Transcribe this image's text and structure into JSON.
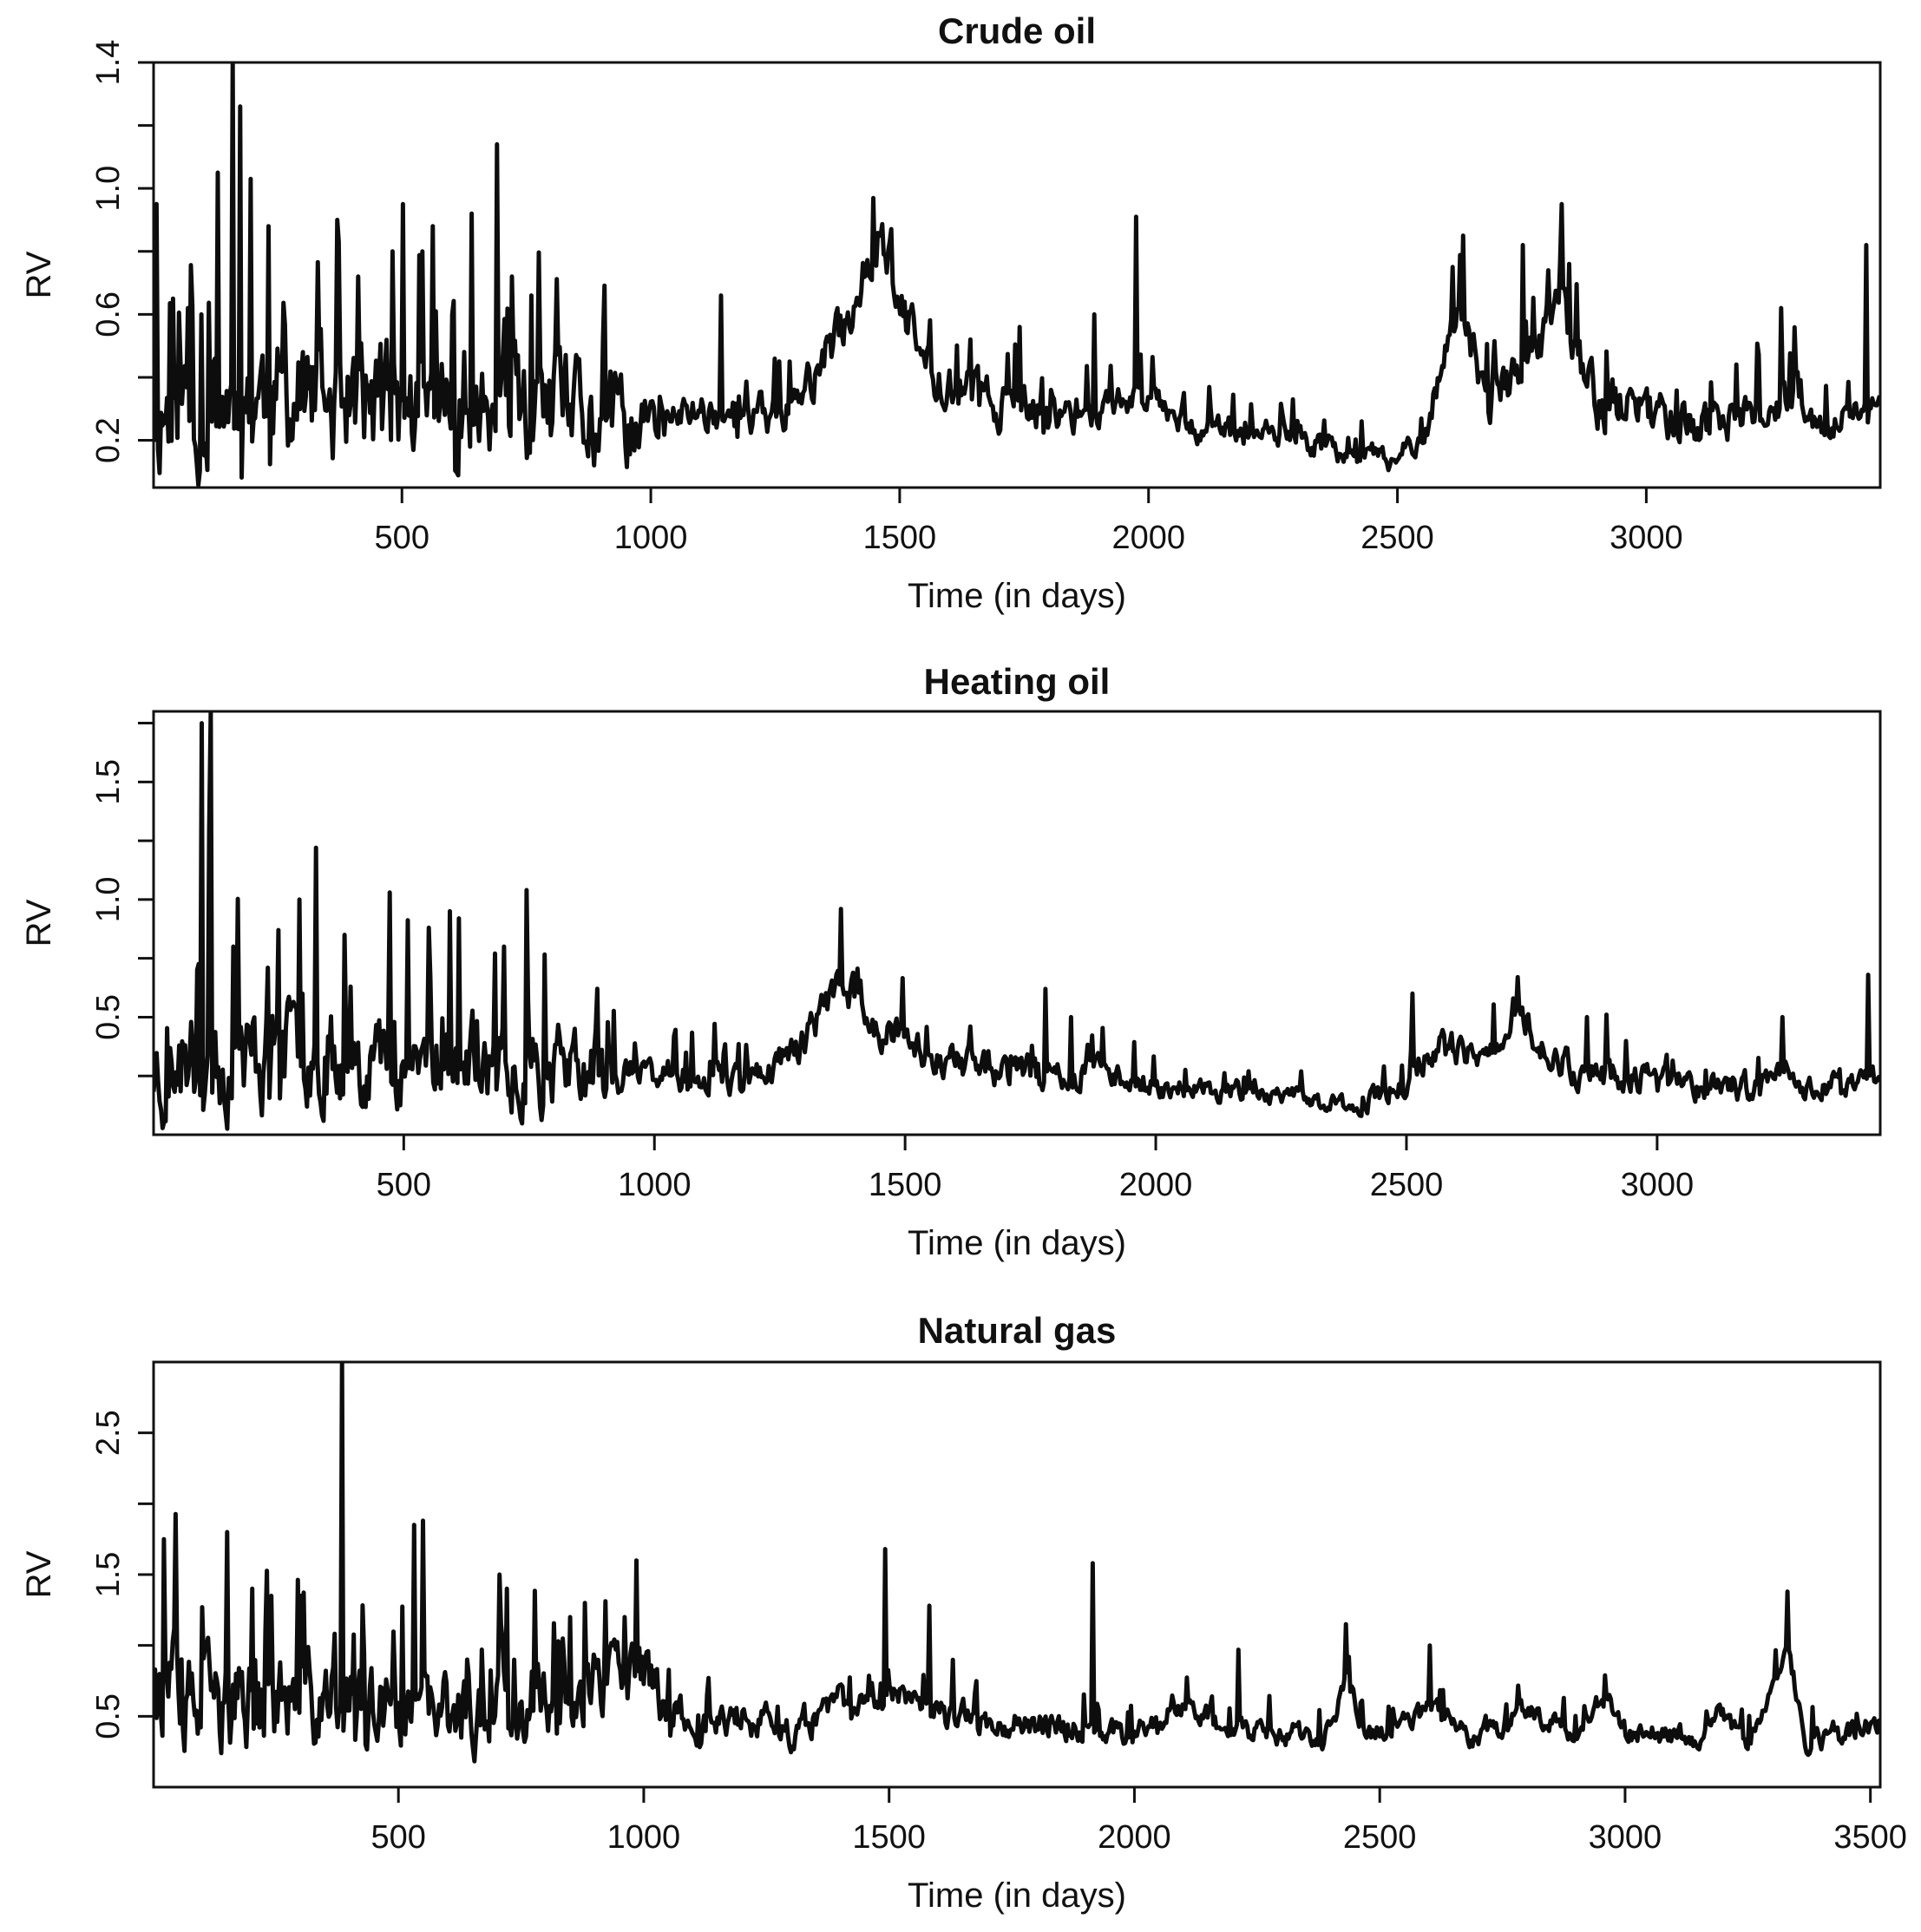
{
  "colors": {
    "line": "#0d0d0d",
    "axis": "#111111",
    "background": "#ffffff"
  },
  "chart_data": [
    {
      "type": "line",
      "title": "Crude oil",
      "xlabel": "Time (in days)",
      "ylabel": "RV",
      "xlim": [
        1,
        3470
      ],
      "ylim": [
        0.05,
        1.4
      ],
      "xticks": [
        500,
        1000,
        1500,
        2000,
        2500,
        3000
      ],
      "yticks": [
        0.2,
        0.6,
        1.0,
        1.4
      ],
      "ytick_labels": [
        "0.2",
        "0.6",
        "1.0",
        "1.4"
      ],
      "base_profile": [
        [
          1,
          0.3
        ],
        [
          200,
          0.34
        ],
        [
          500,
          0.3
        ],
        [
          800,
          0.27
        ],
        [
          1000,
          0.24
        ],
        [
          1100,
          0.3
        ],
        [
          1200,
          0.26
        ],
        [
          1300,
          0.32
        ],
        [
          1400,
          0.6
        ],
        [
          1460,
          0.88
        ],
        [
          1500,
          0.62
        ],
        [
          1560,
          0.42
        ],
        [
          1700,
          0.32
        ],
        [
          1800,
          0.27
        ],
        [
          1950,
          0.33
        ],
        [
          2000,
          0.36
        ],
        [
          2100,
          0.24
        ],
        [
          2300,
          0.2
        ],
        [
          2500,
          0.13
        ],
        [
          2560,
          0.26
        ],
        [
          2620,
          0.62
        ],
        [
          2680,
          0.33
        ],
        [
          2760,
          0.42
        ],
        [
          2830,
          0.62
        ],
        [
          2900,
          0.32
        ],
        [
          3000,
          0.3
        ],
        [
          3150,
          0.24
        ],
        [
          3300,
          0.34
        ],
        [
          3350,
          0.24
        ],
        [
          3470,
          0.3
        ]
      ],
      "noise_profile": [
        [
          1,
          0.17
        ],
        [
          900,
          0.14
        ],
        [
          1050,
          0.05
        ],
        [
          1400,
          0.06
        ],
        [
          1500,
          0.07
        ],
        [
          2000,
          0.04
        ],
        [
          2500,
          0.03
        ],
        [
          2650,
          0.06
        ],
        [
          2850,
          0.07
        ],
        [
          3470,
          0.04
        ]
      ],
      "spikes": [
        [
          5,
          0.95
        ],
        [
          40,
          0.65
        ],
        [
          70,
          0.62
        ],
        [
          95,
          0.6
        ],
        [
          130,
          1.05
        ],
        [
          160,
          1.4
        ],
        [
          175,
          1.26
        ],
        [
          195,
          1.03
        ],
        [
          230,
          0.88
        ],
        [
          300,
          0.48
        ],
        [
          370,
          0.9
        ],
        [
          410,
          0.72
        ],
        [
          480,
          0.8
        ],
        [
          500,
          0.95
        ],
        [
          540,
          0.8
        ],
        [
          560,
          0.88
        ],
        [
          600,
          0.6
        ],
        [
          640,
          0.92
        ],
        [
          690,
          1.14
        ],
        [
          720,
          0.72
        ],
        [
          760,
          0.66
        ],
        [
          1140,
          0.66
        ],
        [
          1740,
          0.56
        ],
        [
          1890,
          0.6
        ],
        [
          1975,
          0.91
        ],
        [
          2290,
          0.33
        ],
        [
          2630,
          0.85
        ],
        [
          2750,
          0.82
        ],
        [
          2830,
          0.95
        ],
        [
          3270,
          0.62
        ],
        [
          3440,
          0.82
        ]
      ],
      "seed": 11
    },
    {
      "type": "line",
      "title": "Heating oil",
      "xlabel": "Time (in days)",
      "ylabel": "RV",
      "xlim": [
        1,
        3445
      ],
      "ylim": [
        0.0,
        1.8
      ],
      "xticks": [
        500,
        1000,
        1500,
        2000,
        2500,
        3000
      ],
      "yticks": [
        0.5,
        1.0,
        1.5
      ],
      "ytick_labels": [
        "0.5",
        "1.0",
        "1.5"
      ],
      "base_profile": [
        [
          1,
          0.28
        ],
        [
          300,
          0.36
        ],
        [
          700,
          0.3
        ],
        [
          900,
          0.27
        ],
        [
          1000,
          0.26
        ],
        [
          1200,
          0.24
        ],
        [
          1300,
          0.4
        ],
        [
          1370,
          0.66
        ],
        [
          1450,
          0.45
        ],
        [
          1600,
          0.3
        ],
        [
          1800,
          0.25
        ],
        [
          1900,
          0.28
        ],
        [
          2000,
          0.2
        ],
        [
          2200,
          0.18
        ],
        [
          2400,
          0.12
        ],
        [
          2500,
          0.22
        ],
        [
          2550,
          0.38
        ],
        [
          2650,
          0.3
        ],
        [
          2720,
          0.55
        ],
        [
          2800,
          0.3
        ],
        [
          3000,
          0.22
        ],
        [
          3200,
          0.2
        ],
        [
          3260,
          0.28
        ],
        [
          3300,
          0.2
        ],
        [
          3445,
          0.23
        ]
      ],
      "noise_profile": [
        [
          1,
          0.19
        ],
        [
          900,
          0.13
        ],
        [
          950,
          0.05
        ],
        [
          1300,
          0.06
        ],
        [
          1450,
          0.07
        ],
        [
          2000,
          0.04
        ],
        [
          2400,
          0.03
        ],
        [
          2550,
          0.06
        ],
        [
          2750,
          0.06
        ],
        [
          3445,
          0.04
        ]
      ],
      "spikes": [
        [
          95,
          1.75
        ],
        [
          110,
          1.3
        ],
        [
          115,
          1.8
        ],
        [
          160,
          0.8
        ],
        [
          250,
          0.87
        ],
        [
          290,
          1.0
        ],
        [
          325,
          1.22
        ],
        [
          380,
          0.85
        ],
        [
          470,
          1.03
        ],
        [
          550,
          0.88
        ],
        [
          590,
          0.95
        ],
        [
          610,
          0.92
        ],
        [
          700,
          0.8
        ],
        [
          745,
          1.04
        ],
        [
          1370,
          0.96
        ],
        [
          1630,
          0.46
        ],
        [
          1780,
          0.62
        ],
        [
          1830,
          0.5
        ],
        [
          2510,
          0.6
        ],
        [
          2720,
          0.67
        ],
        [
          2860,
          0.5
        ],
        [
          3250,
          0.5
        ],
        [
          3420,
          0.68
        ]
      ],
      "seed": 23
    },
    {
      "type": "line",
      "title": "Natural gas",
      "xlabel": "Time (in days)",
      "ylabel": "RV",
      "xlim": [
        1,
        3520
      ],
      "ylim": [
        0.0,
        3.0
      ],
      "xticks": [
        500,
        1000,
        1500,
        2000,
        2500,
        3000,
        3500
      ],
      "yticks": [
        0.5,
        1.5,
        2.5
      ],
      "ytick_labels": [
        "0.5",
        "1.5",
        "2.5"
      ],
      "base_profile": [
        [
          1,
          0.8
        ],
        [
          60,
          0.55
        ],
        [
          300,
          0.6
        ],
        [
          500,
          0.48
        ],
        [
          700,
          0.55
        ],
        [
          900,
          0.7
        ],
        [
          1000,
          0.8
        ],
        [
          1100,
          0.4
        ],
        [
          1200,
          0.5
        ],
        [
          1300,
          0.38
        ],
        [
          1400,
          0.6
        ],
        [
          1550,
          0.7
        ],
        [
          1600,
          0.5
        ],
        [
          1800,
          0.45
        ],
        [
          2000,
          0.38
        ],
        [
          2100,
          0.6
        ],
        [
          2200,
          0.4
        ],
        [
          2400,
          0.35
        ],
        [
          2430,
          0.8
        ],
        [
          2470,
          0.35
        ],
        [
          2600,
          0.55
        ],
        [
          2700,
          0.35
        ],
        [
          2800,
          0.55
        ],
        [
          2900,
          0.4
        ],
        [
          2960,
          0.65
        ],
        [
          3000,
          0.38
        ],
        [
          3150,
          0.35
        ],
        [
          3180,
          0.55
        ],
        [
          3250,
          0.3
        ],
        [
          3330,
          1.0
        ],
        [
          3370,
          0.3
        ],
        [
          3520,
          0.45
        ]
      ],
      "noise_profile": [
        [
          1,
          0.3
        ],
        [
          600,
          0.22
        ],
        [
          1000,
          0.2
        ],
        [
          1100,
          0.1
        ],
        [
          1600,
          0.09
        ],
        [
          2000,
          0.07
        ],
        [
          3520,
          0.06
        ]
      ],
      "spikes": [
        [
          20,
          1.75
        ],
        [
          100,
          1.27
        ],
        [
          150,
          1.8
        ],
        [
          200,
          1.4
        ],
        [
          240,
          1.35
        ],
        [
          300,
          1.35
        ],
        [
          385,
          3.0
        ],
        [
          430,
          0.95
        ],
        [
          530,
          1.85
        ],
        [
          550,
          1.88
        ],
        [
          640,
          0.9
        ],
        [
          705,
          1.5
        ],
        [
          720,
          1.4
        ],
        [
          850,
          1.2
        ],
        [
          880,
          1.3
        ],
        [
          960,
          1.2
        ],
        [
          985,
          1.6
        ],
        [
          1490,
          1.68
        ],
        [
          1580,
          1.28
        ],
        [
          1915,
          1.58
        ],
        [
          2210,
          0.97
        ],
        [
          2430,
          1.15
        ],
        [
          2600,
          1.0
        ],
        [
          3330,
          1.38
        ]
      ],
      "seed": 37
    }
  ]
}
